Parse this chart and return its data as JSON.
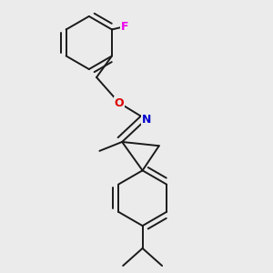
{
  "background_color": "#ebebeb",
  "bond_color": "#1a1a1a",
  "atom_colors": {
    "F": "#ee00ee",
    "O": "#dd0000",
    "N": "#0000cc"
  },
  "bond_width": 1.4,
  "figsize": [
    3.0,
    3.0
  ],
  "dpi": 100
}
